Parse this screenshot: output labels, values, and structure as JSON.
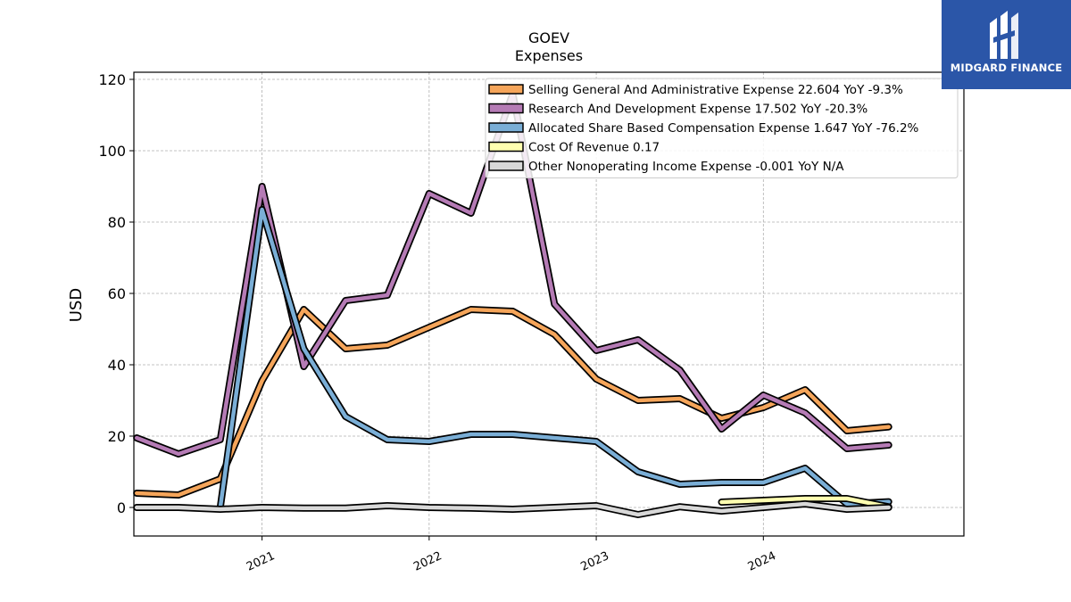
{
  "logo": {
    "text": "MIDGARD FINANCE",
    "icon": "midgard-logo-icon",
    "bg": "#2b56a8"
  },
  "chart_data": {
    "type": "line",
    "title": "GOEV",
    "subtitle": "Expenses",
    "ylabel": "USD",
    "xlabel": "",
    "ylim": [
      -8,
      122
    ],
    "yticks": [
      0,
      20,
      40,
      60,
      80,
      100,
      120
    ],
    "xlim": [
      2020.233,
      2025.2
    ],
    "xticks": [
      {
        "value": 2021.0,
        "label": "2021"
      },
      {
        "value": 2022.0,
        "label": "2022"
      },
      {
        "value": 2023.0,
        "label": "2023"
      },
      {
        "value": 2024.0,
        "label": "2024"
      }
    ],
    "grid": true,
    "legend_position": "top-right",
    "x": [
      2020.25,
      2020.5,
      2020.75,
      2021.0,
      2021.25,
      2021.5,
      2021.75,
      2022.0,
      2022.25,
      2022.5,
      2022.75,
      2023.0,
      2023.25,
      2023.5,
      2023.75,
      2024.0,
      2024.25,
      2024.5,
      2024.75
    ],
    "series": [
      {
        "name": "Selling General And Administrative Expense",
        "legend": "Selling General And Administrative Expense  22.604 YoY -9.3%",
        "color": "#f5a55a",
        "values": [
          4,
          3.5,
          8,
          35.5,
          55.5,
          44.5,
          45.5,
          50.5,
          55.5,
          55,
          48.5,
          36,
          30,
          30.5,
          25,
          28,
          33,
          21.5,
          22.6
        ]
      },
      {
        "name": "Research And Development Expense",
        "legend": "Research And Development Expense  17.502 YoY -20.3%",
        "color": "#b57bb5",
        "values": [
          19.5,
          15,
          19,
          90,
          39.5,
          58,
          59.5,
          88,
          82.5,
          116,
          57,
          44,
          47,
          38.5,
          22,
          31.5,
          26.5,
          16.5,
          17.5
        ]
      },
      {
        "name": "Allocated Share Based Compensation Expense",
        "legend": "Allocated Share Based Compensation Expense  1.647 YoY -76.2%",
        "color": "#7aaed6",
        "values": [
          null,
          null,
          0,
          83.5,
          44.5,
          25.5,
          19,
          18.5,
          20.5,
          20.5,
          19.5,
          18.5,
          10,
          6.5,
          7,
          7,
          11,
          1,
          1.6
        ]
      },
      {
        "name": "Cost Of Revenue",
        "legend": "Cost Of Revenue  0.17",
        "color": "#ffffb0",
        "values": [
          null,
          null,
          null,
          null,
          null,
          null,
          null,
          null,
          null,
          null,
          null,
          null,
          null,
          null,
          1.5,
          2,
          2.5,
          2.5,
          0.17
        ]
      },
      {
        "name": "Other Nonoperating Income Expense",
        "legend": "Other Nonoperating Income Expense  -0.001 YoY N/A",
        "color": "#d8d8d8",
        "values": [
          0,
          0,
          -0.5,
          0,
          -0.2,
          -0.2,
          0.5,
          0,
          -0.2,
          -0.5,
          0,
          0.5,
          -2,
          0.2,
          -1,
          0,
          1,
          -0.5,
          0
        ]
      }
    ]
  }
}
